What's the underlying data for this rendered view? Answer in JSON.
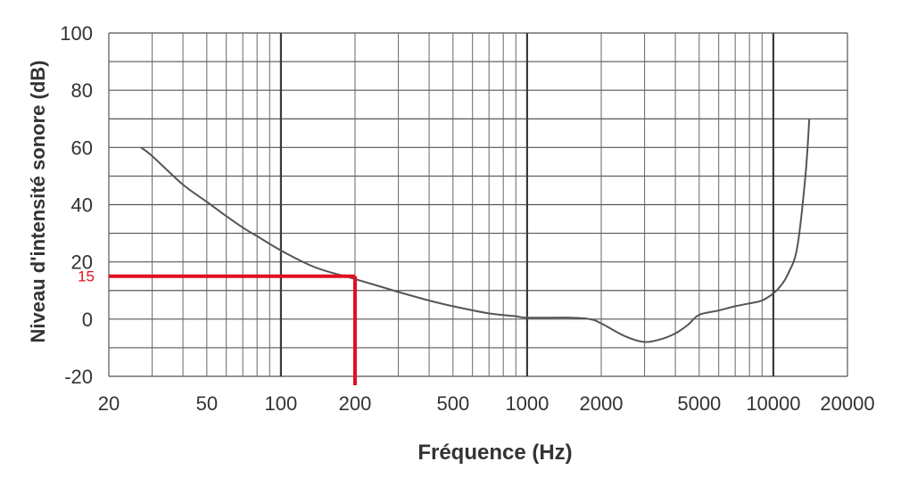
{
  "chart_data": {
    "type": "line",
    "title": "",
    "xlabel": "Fréquence (Hz)",
    "ylabel": "Niveau d'intensité sonore (dB)",
    "xscale": "log",
    "xlim": [
      20,
      20000
    ],
    "ylim": [
      -20,
      100
    ],
    "grid": true,
    "xticks": [
      20,
      50,
      100,
      200,
      500,
      1000,
      2000,
      5000,
      10000,
      20000
    ],
    "xtick_labels": [
      "20",
      "50",
      "100",
      "200",
      "500",
      "1000",
      "2000",
      "5000",
      "10000",
      "20000"
    ],
    "yticks": [
      -20,
      0,
      20,
      40,
      60,
      80,
      100
    ],
    "ytick_labels": [
      "-20",
      "0",
      "20",
      "40",
      "60",
      "80",
      "100"
    ],
    "series": [
      {
        "color": "#555555",
        "x": [
          27,
          30,
          40,
          50,
          60,
          70,
          80,
          100,
          130,
          150,
          200,
          300,
          400,
          500,
          700,
          900,
          1000,
          1500,
          1800,
          2000,
          2500,
          3000,
          3500,
          4000,
          4500,
          5000,
          6000,
          7000,
          8000,
          9000,
          10000,
          10800,
          11500,
          12500,
          13500,
          14000
        ],
        "y": [
          60,
          57,
          47,
          41,
          36,
          32,
          29,
          24,
          19,
          17,
          14,
          9.5,
          6.5,
          4.5,
          2,
          1,
          0.5,
          0.5,
          0,
          -1.5,
          -6,
          -8,
          -7,
          -5,
          -2,
          1.5,
          3,
          4.5,
          5.5,
          6.5,
          9,
          12,
          16,
          25,
          50,
          70
        ]
      }
    ],
    "annotations": [
      {
        "type": "marker-lines",
        "x": 200,
        "y": 15,
        "label": "15",
        "color": "#e0101e"
      }
    ]
  }
}
